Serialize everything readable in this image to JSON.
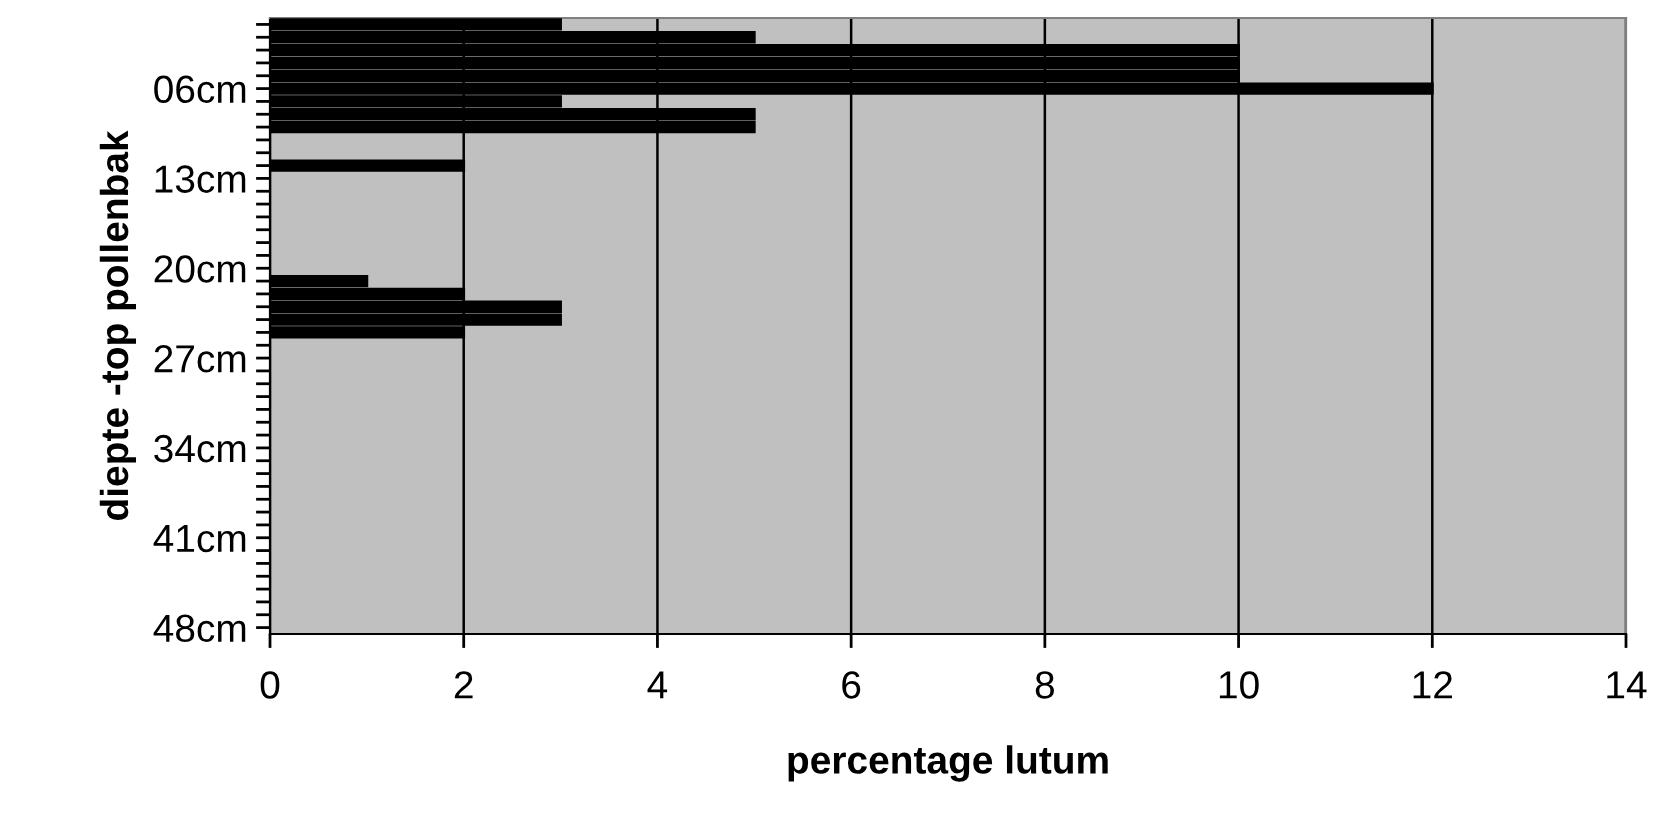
{
  "chart_data": {
    "type": "bar",
    "orientation": "horizontal",
    "xlabel": "percentage lutum",
    "ylabel": "diepte -top pollenbak",
    "categories": [
      null,
      null,
      null,
      null,
      null,
      "06cm",
      null,
      null,
      null,
      null,
      null,
      null,
      "13cm",
      null,
      null,
      null,
      null,
      null,
      null,
      "20cm",
      null,
      null,
      null,
      null,
      null,
      null,
      "27cm",
      null,
      null,
      null,
      null,
      null,
      null,
      "34cm",
      null,
      null,
      null,
      null,
      null,
      null,
      "41cm",
      null,
      null,
      null,
      null,
      null,
      null,
      "48cm"
    ],
    "values": [
      3,
      5,
      10,
      10,
      10,
      12,
      3,
      5,
      5,
      null,
      null,
      2,
      null,
      null,
      null,
      null,
      null,
      null,
      null,
      null,
      1,
      2,
      3,
      3,
      2,
      null,
      null,
      null,
      null,
      null,
      null,
      null,
      null,
      null,
      null,
      null,
      null,
      null,
      null,
      null,
      null,
      null,
      null,
      null,
      null,
      null,
      null,
      null
    ],
    "color": "#000000",
    "xlim": [
      0,
      14
    ],
    "xticks": [
      0,
      2,
      4,
      6,
      8,
      10,
      12,
      14
    ],
    "grid": "x"
  }
}
